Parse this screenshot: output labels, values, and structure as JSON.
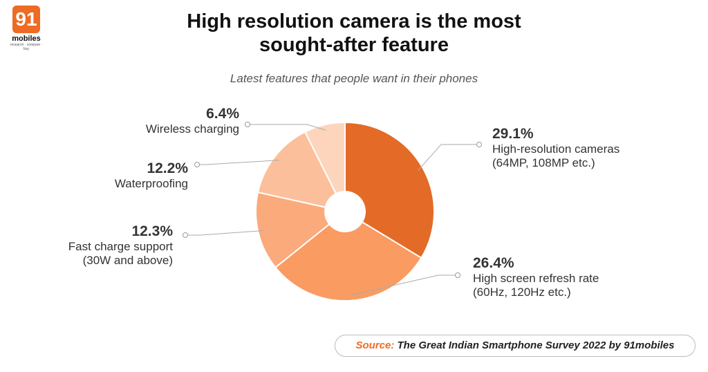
{
  "logo": {
    "number": "91",
    "name": "mobiles",
    "tagline": "research · compare · buy"
  },
  "title_line1": "High resolution camera is the most",
  "title_line2": "sought-after feature",
  "subtitle": "Latest features that people want in their phones",
  "source": {
    "label": "Source:",
    "text": "The Great Indian Smartphone Survey 2022 by 91mobiles"
  },
  "chart_data": {
    "type": "pie",
    "title": "High resolution camera is the most sought-after feature",
    "subtitle": "Latest features that people want in their phones",
    "values": [
      29.1,
      26.4,
      12.3,
      12.2,
      6.4
    ],
    "labels": [
      "29.1%",
      "26.4%",
      "12.3%",
      "12.2%",
      "6.4%"
    ],
    "categories": [
      [
        "High-resolution cameras",
        "(64MP, 108MP etc.)"
      ],
      [
        "High screen refresh rate",
        "(60Hz, 120Hz etc.)"
      ],
      [
        "Fast charge support",
        "(30W and above)"
      ],
      [
        "Waterproofing"
      ],
      [
        "Wireless charging"
      ]
    ],
    "colors": [
      "#e36b27",
      "#fa9b62",
      "#fbaa7c",
      "#fcbf9b",
      "#fdd5bd"
    ]
  }
}
